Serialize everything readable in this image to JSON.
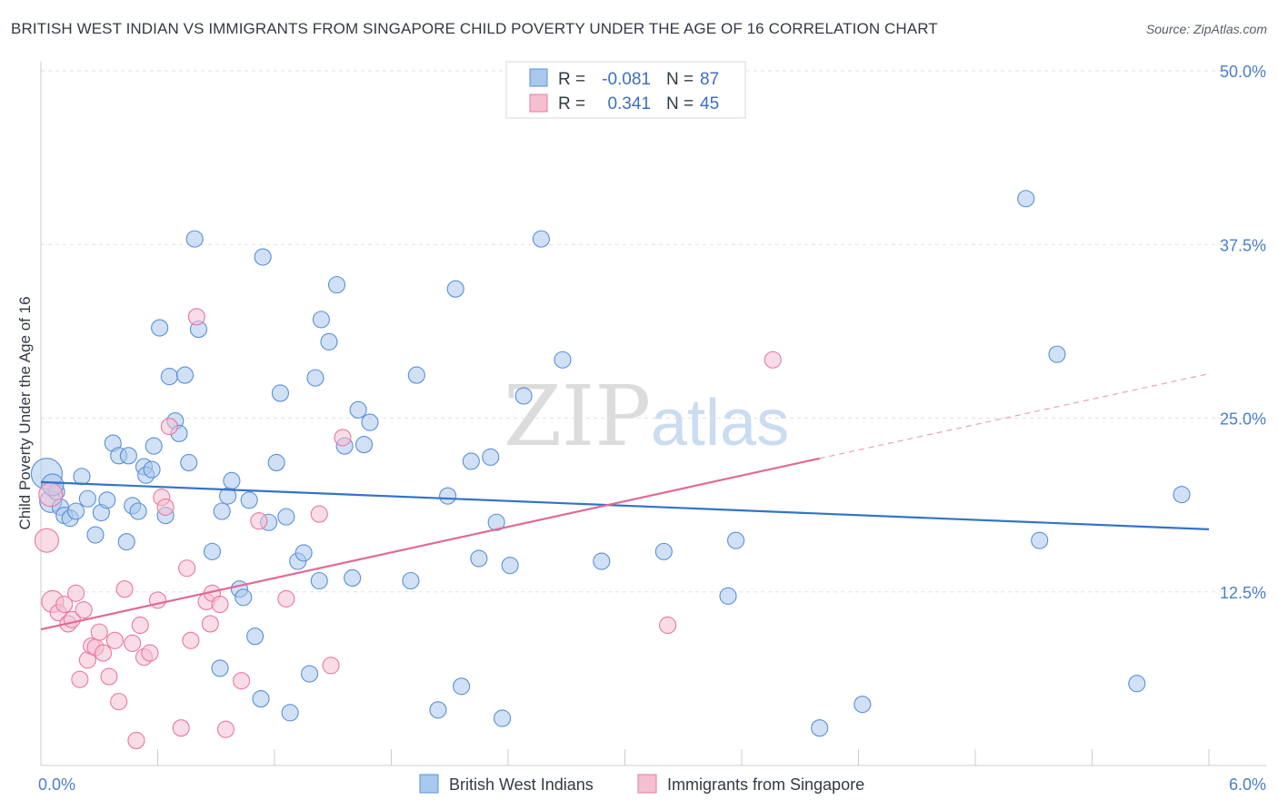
{
  "title": "BRITISH WEST INDIAN VS IMMIGRANTS FROM SINGAPORE CHILD POVERTY UNDER THE AGE OF 16 CORRELATION CHART",
  "source": "Source: ZipAtlas.com",
  "watermark": {
    "zip": "ZIP",
    "atlas": "atlas"
  },
  "chart_data": {
    "type": "scatter",
    "title": "BRITISH WEST INDIAN VS IMMIGRANTS FROM SINGAPORE CHILD POVERTY UNDER THE AGE OF 16 CORRELATION CHART",
    "xlabel": "",
    "ylabel": "Child Poverty Under the Age of 16",
    "xlim": [
      0,
      6.3
    ],
    "ylim": [
      0,
      50
    ],
    "x_tick_labels": [
      "0.0%",
      "6.0%"
    ],
    "y_ticks": [
      12.5,
      25.0,
      37.5,
      50.0
    ],
    "y_tick_labels": [
      "12.5%",
      "25.0%",
      "37.5%",
      "50.0%"
    ],
    "grid": "horizontal dashed",
    "legend_placement": "top-center (stats) and bottom-center (series)",
    "stats_legend": [
      {
        "r_label": "R =",
        "r_value": "-0.081",
        "n_label": "N =",
        "n_value": "87"
      },
      {
        "r_label": "R =",
        "r_value": "0.341",
        "n_label": "N =",
        "n_value": "45"
      }
    ],
    "series": [
      {
        "name": "British West Indians",
        "color": "#5b8fd6",
        "fill": "#a9c8ee",
        "trend": {
          "x": [
            0.0,
            6.0
          ],
          "y": [
            20.4,
            17.0
          ],
          "style": "solid"
        },
        "points": [
          [
            0.03,
            21.0
          ],
          [
            0.05,
            19.0
          ],
          [
            0.08,
            19.7
          ],
          [
            0.1,
            18.6
          ],
          [
            0.12,
            18.0
          ],
          [
            0.15,
            17.8
          ],
          [
            0.18,
            18.3
          ],
          [
            0.21,
            20.8
          ],
          [
            0.24,
            19.2
          ],
          [
            0.28,
            16.6
          ],
          [
            0.31,
            18.2
          ],
          [
            0.34,
            19.1
          ],
          [
            0.37,
            23.2
          ],
          [
            0.4,
            22.3
          ],
          [
            0.44,
            16.1
          ],
          [
            0.47,
            18.7
          ],
          [
            0.5,
            18.3
          ],
          [
            0.53,
            21.5
          ],
          [
            0.54,
            20.9
          ],
          [
            0.58,
            23.0
          ],
          [
            0.61,
            31.5
          ],
          [
            0.64,
            18.0
          ],
          [
            0.66,
            28.0
          ],
          [
            0.69,
            24.8
          ],
          [
            0.71,
            23.9
          ],
          [
            0.74,
            28.1
          ],
          [
            0.76,
            21.8
          ],
          [
            0.79,
            37.9
          ],
          [
            0.81,
            31.4
          ],
          [
            0.88,
            15.4
          ],
          [
            0.92,
            7.0
          ],
          [
            0.93,
            18.3
          ],
          [
            0.96,
            19.4
          ],
          [
            0.98,
            20.5
          ],
          [
            1.02,
            12.7
          ],
          [
            1.04,
            12.1
          ],
          [
            1.07,
            19.1
          ],
          [
            1.1,
            9.3
          ],
          [
            1.13,
            4.8
          ],
          [
            1.14,
            36.6
          ],
          [
            1.17,
            17.5
          ],
          [
            1.21,
            21.8
          ],
          [
            1.23,
            26.8
          ],
          [
            1.26,
            17.9
          ],
          [
            1.28,
            3.8
          ],
          [
            1.32,
            14.7
          ],
          [
            1.35,
            15.3
          ],
          [
            1.38,
            6.6
          ],
          [
            1.41,
            27.9
          ],
          [
            1.43,
            13.3
          ],
          [
            1.44,
            32.1
          ],
          [
            1.48,
            30.5
          ],
          [
            1.52,
            34.6
          ],
          [
            1.56,
            23.0
          ],
          [
            1.6,
            13.5
          ],
          [
            1.63,
            25.6
          ],
          [
            1.66,
            23.1
          ],
          [
            1.69,
            24.7
          ],
          [
            1.9,
            13.3
          ],
          [
            1.93,
            28.1
          ],
          [
            2.04,
            4.0
          ],
          [
            2.09,
            19.4
          ],
          [
            2.13,
            34.3
          ],
          [
            2.16,
            5.7
          ],
          [
            2.21,
            21.9
          ],
          [
            2.25,
            14.9
          ],
          [
            2.31,
            22.2
          ],
          [
            2.34,
            17.5
          ],
          [
            2.37,
            3.4
          ],
          [
            2.41,
            14.4
          ],
          [
            2.48,
            26.6
          ],
          [
            2.57,
            37.9
          ],
          [
            2.68,
            29.2
          ],
          [
            2.88,
            14.7
          ],
          [
            3.2,
            15.4
          ],
          [
            3.53,
            12.2
          ],
          [
            3.57,
            16.2
          ],
          [
            4.0,
            2.7
          ],
          [
            4.22,
            4.4
          ],
          [
            5.06,
            40.8
          ],
          [
            5.13,
            16.2
          ],
          [
            5.22,
            29.6
          ],
          [
            5.63,
            5.9
          ],
          [
            5.86,
            19.5
          ],
          [
            0.06,
            20.2
          ],
          [
            0.45,
            22.3
          ],
          [
            0.57,
            21.3
          ]
        ]
      },
      {
        "name": "Immigrants from Singapore",
        "color": "#e8799f",
        "fill": "#f5bfd1",
        "trend": {
          "x": [
            0.0,
            4.0
          ],
          "y": [
            9.8,
            22.1
          ],
          "style": "solid",
          "extended": {
            "x": [
              4.0,
              6.0
            ],
            "y": [
              22.1,
              28.2
            ],
            "style": "dashed"
          }
        },
        "points": [
          [
            0.03,
            16.2
          ],
          [
            0.05,
            19.5
          ],
          [
            0.06,
            11.8
          ],
          [
            0.09,
            11.0
          ],
          [
            0.12,
            11.6
          ],
          [
            0.14,
            10.2
          ],
          [
            0.16,
            10.5
          ],
          [
            0.18,
            12.4
          ],
          [
            0.2,
            6.2
          ],
          [
            0.22,
            11.2
          ],
          [
            0.24,
            7.6
          ],
          [
            0.26,
            8.6
          ],
          [
            0.28,
            8.5
          ],
          [
            0.3,
            9.6
          ],
          [
            0.32,
            8.1
          ],
          [
            0.35,
            6.4
          ],
          [
            0.38,
            9.0
          ],
          [
            0.4,
            4.6
          ],
          [
            0.43,
            12.7
          ],
          [
            0.47,
            8.8
          ],
          [
            0.49,
            1.8
          ],
          [
            0.51,
            10.1
          ],
          [
            0.53,
            7.8
          ],
          [
            0.56,
            8.1
          ],
          [
            0.6,
            11.9
          ],
          [
            0.62,
            19.3
          ],
          [
            0.64,
            18.6
          ],
          [
            0.66,
            24.4
          ],
          [
            0.72,
            2.7
          ],
          [
            0.75,
            14.2
          ],
          [
            0.77,
            9.0
          ],
          [
            0.8,
            32.3
          ],
          [
            0.85,
            11.8
          ],
          [
            0.87,
            10.2
          ],
          [
            0.88,
            12.4
          ],
          [
            0.92,
            11.6
          ],
          [
            0.95,
            2.6
          ],
          [
            1.03,
            6.1
          ],
          [
            1.12,
            17.6
          ],
          [
            1.26,
            12.0
          ],
          [
            1.43,
            18.1
          ],
          [
            1.49,
            7.2
          ],
          [
            1.55,
            23.6
          ],
          [
            3.22,
            10.1
          ],
          [
            3.76,
            29.2
          ]
        ]
      }
    ]
  }
}
